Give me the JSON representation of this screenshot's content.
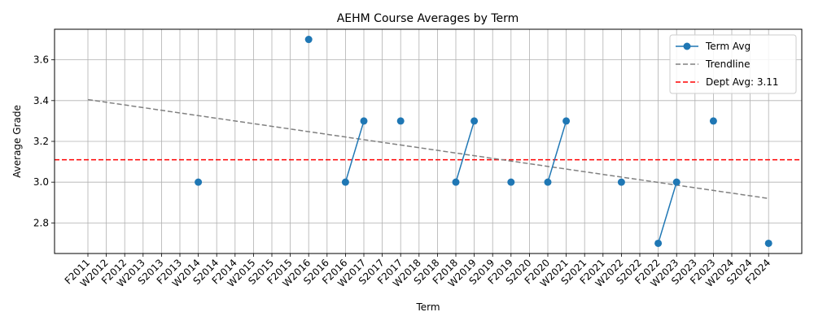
{
  "chart_data": {
    "type": "line",
    "title": "AEHM Course Averages by Term",
    "xlabel": "Term",
    "ylabel": "Average Grade",
    "ylim": [
      2.65,
      3.75
    ],
    "yticks": [
      2.8,
      3.0,
      3.2,
      3.4,
      3.6
    ],
    "categories": [
      "F2011",
      "W2012",
      "F2012",
      "W2013",
      "S2013",
      "F2013",
      "W2014",
      "S2014",
      "F2014",
      "W2015",
      "S2015",
      "F2015",
      "W2016",
      "S2016",
      "F2016",
      "W2017",
      "S2017",
      "F2017",
      "W2018",
      "S2018",
      "F2018",
      "W2019",
      "S2019",
      "F2019",
      "S2020",
      "F2020",
      "W2021",
      "S2021",
      "F2021",
      "W2022",
      "S2022",
      "F2022",
      "W2023",
      "S2023",
      "F2023",
      "W2024",
      "S2024",
      "F2024"
    ],
    "grid": true,
    "legend_position": "top-right",
    "series": [
      {
        "name": "Term Avg",
        "color": "#1f77b4",
        "points": [
          {
            "x": "W2014",
            "y": 3.0
          },
          {
            "x": "W2016",
            "y": 3.7
          },
          {
            "x": "F2016",
            "y": 3.0
          },
          {
            "x": "W2017",
            "y": 3.3
          },
          {
            "x": "F2017",
            "y": 3.3
          },
          {
            "x": "F2018",
            "y": 3.0
          },
          {
            "x": "W2019",
            "y": 3.3
          },
          {
            "x": "F2019",
            "y": 3.0
          },
          {
            "x": "F2020",
            "y": 3.0
          },
          {
            "x": "W2021",
            "y": 3.3
          },
          {
            "x": "W2022",
            "y": 3.0
          },
          {
            "x": "F2022",
            "y": 2.7
          },
          {
            "x": "W2023",
            "y": 3.0
          },
          {
            "x": "F2023",
            "y": 3.3
          },
          {
            "x": "F2024",
            "y": 2.7
          }
        ]
      }
    ],
    "trendline": {
      "name": "Trendline",
      "color": "#808080",
      "start": {
        "x": "F2011",
        "y": 3.405
      },
      "end": {
        "x": "F2024",
        "y": 2.92
      }
    },
    "reference_line": {
      "name": "Dept Avg: 3.11",
      "value": 3.11,
      "color": "#ff0000"
    }
  }
}
